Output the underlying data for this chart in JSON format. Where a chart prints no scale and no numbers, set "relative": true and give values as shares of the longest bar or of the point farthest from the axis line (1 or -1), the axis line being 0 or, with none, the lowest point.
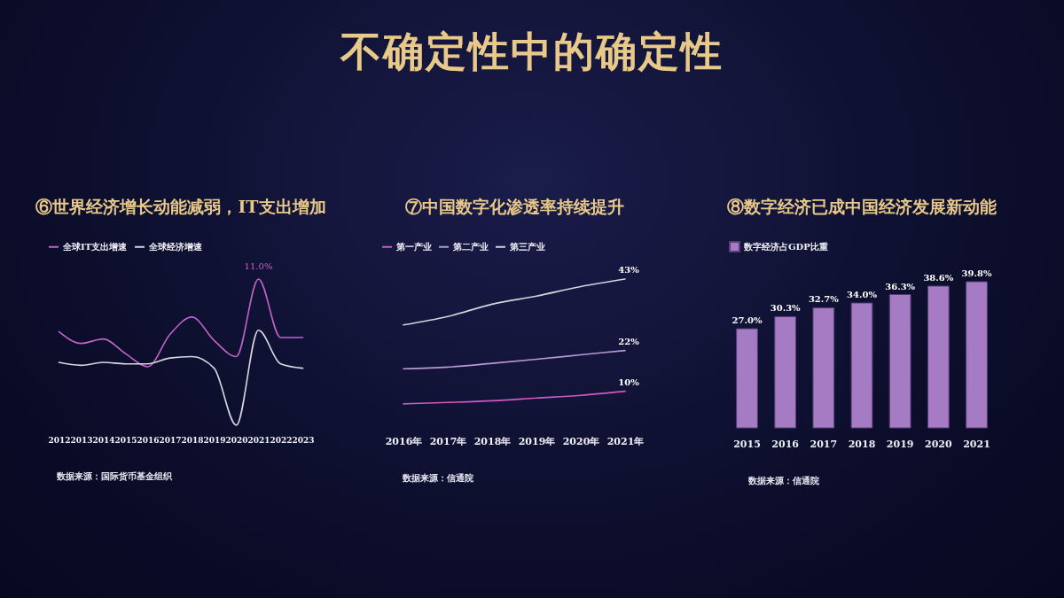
{
  "chart_data": [
    {
      "type": "other",
      "title": "不确定性中的确定性"
    },
    {
      "type": "line",
      "title": "⑥世界经济增长动能减弱，IT支出增加",
      "relative": true,
      "legend": "top",
      "categories": [
        "2012",
        "2013",
        "2014",
        "2015",
        "2016",
        "2017",
        "2018",
        "2019",
        "2020",
        "2021",
        "2022",
        "2023"
      ],
      "series": [
        {
          "name": "全球IT支出增速",
          "color": "#c462c8",
          "values": [
            0.64,
            0.56,
            0.59,
            0.49,
            0.4,
            0.62,
            0.74,
            0.58,
            0.47,
            1,
            0.6,
            0.6
          ]
        },
        {
          "name": "全球经济增速",
          "color": "#d8d8e0",
          "values": [
            0.43,
            0.41,
            0.43,
            0.42,
            0.42,
            0.46,
            0.47,
            0.39,
            0,
            0.65,
            0.42,
            0.39
          ]
        }
      ],
      "annotations": [
        {
          "text": "11.0%",
          "x": "2021",
          "y": 1
        },
        "数据来源：国际货币基金组织"
      ]
    },
    {
      "type": "line",
      "title": "⑦中国数字化渗透率持续提升",
      "legend": "top",
      "tick_labels": "x",
      "categories": [
        "2016年",
        "2017年",
        "2018年",
        "2019年",
        "2020年",
        "2021年"
      ],
      "series": [
        {
          "name": "第一产业",
          "color": "#d458c4",
          "values": [
            6.3,
            6.7,
            7.2,
            8.0,
            8.8,
            10
          ],
          "value_labels": [
            null,
            null,
            null,
            null,
            null,
            "10%"
          ]
        },
        {
          "name": "第二产业",
          "color": "#b898d8",
          "values": [
            16.6,
            17.1,
            18.2,
            19.4,
            20.7,
            22
          ],
          "value_labels": [
            null,
            null,
            null,
            null,
            null,
            "22%"
          ]
        },
        {
          "name": "第三产业",
          "color": "#d4d4dc",
          "values": [
            29.5,
            32,
            35.6,
            38,
            40.8,
            43
          ],
          "value_labels": [
            null,
            null,
            null,
            null,
            null,
            "43%"
          ]
        }
      ],
      "annotations": [
        "数据来源：信通院"
      ]
    },
    {
      "type": "bar",
      "title": "⑧数字经济已成中国经济发展新动能",
      "legend": "top",
      "tick_labels": "x",
      "categories": [
        "2015",
        "2016",
        "2017",
        "2018",
        "2019",
        "2020",
        "2021"
      ],
      "series": [
        {
          "name": "数字经济占GDP比重",
          "color": "#a57bc4",
          "values": [
            27.0,
            30.3,
            32.7,
            34.0,
            36.3,
            38.6,
            39.8
          ],
          "value_labels": [
            "27.0%",
            "30.3%",
            "32.7%",
            "34.0%",
            "36.3%",
            "38.6%",
            "39.8%"
          ]
        }
      ],
      "annotations": [
        "数据来源：信通院"
      ]
    }
  ]
}
